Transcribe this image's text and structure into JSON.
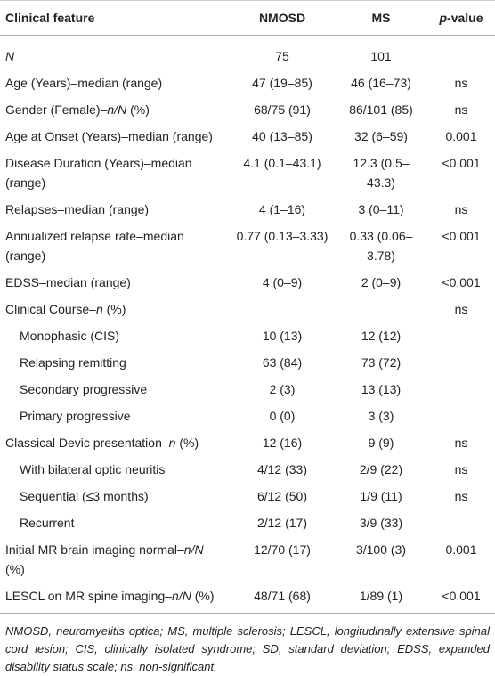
{
  "table": {
    "header": [
      "Clinical feature",
      "NMOSD",
      "MS",
      [
        {
          "italic": "p"
        },
        "-value"
      ]
    ],
    "rows": [
      {
        "indent": false,
        "cells": [
          [
            {
              "italic": "N"
            }
          ],
          "75",
          "101",
          null
        ]
      },
      {
        "indent": false,
        "cells": [
          "Age (Years)–median (range)",
          "47 (19–85)",
          "46 (16–73)",
          "ns"
        ]
      },
      {
        "indent": false,
        "cells": [
          [
            "Gender (Female)–",
            {
              "italic": "n/N"
            },
            " (%)"
          ],
          "68/75 (91)",
          "86/101 (85)",
          "ns"
        ]
      },
      {
        "indent": false,
        "cells": [
          "Age at Onset (Years)–median (range)",
          "40 (13–85)",
          "32 (6–59)",
          "0.001"
        ]
      },
      {
        "indent": false,
        "cells": [
          "Disease Duration (Years)–median (range)",
          "4.1 (0.1–43.1)",
          "12.3 (0.5–43.3)",
          "<0.001"
        ]
      },
      {
        "indent": false,
        "cells": [
          "Relapses–median (range)",
          "4 (1–16)",
          "3 (0–11)",
          "ns"
        ]
      },
      {
        "indent": false,
        "cells": [
          "Annualized relapse rate–median (range)",
          "0.77 (0.13–3.33)",
          "0.33 (0.06–3.78)",
          "<0.001"
        ]
      },
      {
        "indent": false,
        "cells": [
          "EDSS–median (range)",
          "4 (0–9)",
          "2 (0–9)",
          "<0.001"
        ]
      },
      {
        "indent": false,
        "cells": [
          [
            "Clinical Course–",
            {
              "italic": "n"
            },
            " (%)"
          ],
          null,
          null,
          "ns"
        ]
      },
      {
        "indent": true,
        "cells": [
          "Monophasic (CIS)",
          "10 (13)",
          "12 (12)",
          null
        ]
      },
      {
        "indent": true,
        "cells": [
          "Relapsing remitting",
          "63 (84)",
          "73 (72)",
          null
        ]
      },
      {
        "indent": true,
        "cells": [
          "Secondary progressive",
          "2 (3)",
          "13 (13)",
          null
        ]
      },
      {
        "indent": true,
        "cells": [
          "Primary progressive",
          "0 (0)",
          "3 (3)",
          null
        ]
      },
      {
        "indent": false,
        "cells": [
          [
            "Classical Devic presentation–",
            {
              "italic": "n"
            },
            " (%)"
          ],
          "12 (16)",
          "9 (9)",
          "ns"
        ]
      },
      {
        "indent": true,
        "cells": [
          "With bilateral optic neuritis",
          "4/12 (33)",
          "2/9 (22)",
          "ns"
        ]
      },
      {
        "indent": true,
        "cells": [
          "Sequential (≤3 months)",
          "6/12 (50)",
          "1/9 (11)",
          "ns"
        ]
      },
      {
        "indent": true,
        "cells": [
          "Recurrent",
          "2/12 (17)",
          "3/9 (33)",
          null
        ]
      },
      {
        "indent": false,
        "cells": [
          [
            "Initial MR brain imaging normal–",
            {
              "italic": "n/N"
            },
            " (%)"
          ],
          "12/70 (17)",
          "3/100 (3)",
          "0.001"
        ]
      },
      {
        "indent": false,
        "cells": [
          [
            "LESCL on MR spine imaging–",
            {
              "italic": "n/N"
            },
            " (%)"
          ],
          "48/71 (68)",
          "1/89 (1)",
          "<0.001"
        ]
      }
    ],
    "footnote": "NMOSD, neuromyelitis optica; MS, multiple sclerosis; LESCL, longitudinally extensive spinal cord lesion; CIS, clinically isolated syndrome; SD, standard deviation; EDSS, expanded disability status scale; ns, non-significant."
  }
}
